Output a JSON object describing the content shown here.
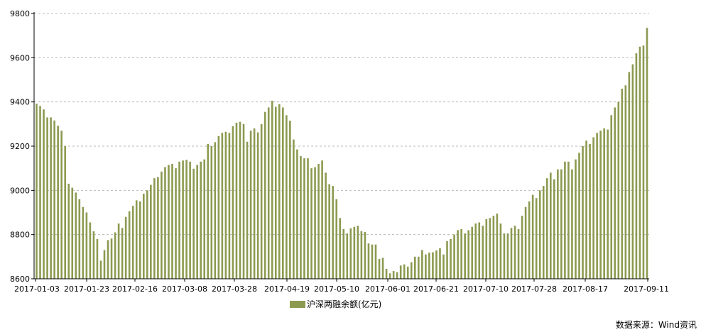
{
  "chart_data": {
    "type": "bar",
    "title": "",
    "xlabel": "",
    "ylabel": "",
    "ylim": [
      8600,
      9800
    ],
    "yticks": [
      8600,
      8800,
      9000,
      9200,
      9400,
      9600,
      9800
    ],
    "xtick_labels": [
      "2017-01-03",
      "2017-01-23",
      "2017-02-16",
      "2017-03-08",
      "2017-03-28",
      "2017-04-19",
      "2017-05-10",
      "2017-06-01",
      "2017-06-21",
      "2017-07-10",
      "2017-07-28",
      "2017-08-17",
      "2017-09-11"
    ],
    "grid": "horizontal dashed",
    "bar_color": "#8c9a50",
    "series": [
      {
        "name": "沪深两融余额(亿元)",
        "values": [
          9392,
          9382,
          9366,
          9330,
          9330,
          9316,
          9292,
          9270,
          9200,
          9030,
          9012,
          8990,
          8960,
          8925,
          8900,
          8855,
          8815,
          8780,
          8682,
          8730,
          8775,
          8782,
          8810,
          8850,
          8830,
          8880,
          8905,
          8930,
          8955,
          8950,
          8985,
          9000,
          9025,
          9055,
          9060,
          9085,
          9105,
          9115,
          9120,
          9100,
          9130,
          9135,
          9138,
          9130,
          9098,
          9115,
          9130,
          9140,
          9210,
          9200,
          9218,
          9245,
          9260,
          9265,
          9260,
          9290,
          9306,
          9310,
          9300,
          9220,
          9270,
          9280,
          9262,
          9300,
          9355,
          9375,
          9405,
          9378,
          9390,
          9375,
          9340,
          9315,
          9230,
          9185,
          9155,
          9145,
          9145,
          9100,
          9105,
          9120,
          9135,
          9080,
          9028,
          9020,
          8960,
          8875,
          8825,
          8805,
          8828,
          8835,
          8840,
          8815,
          8812,
          8760,
          8755,
          8755,
          8690,
          8695,
          8645,
          8625,
          8635,
          8630,
          8660,
          8665,
          8655,
          8675,
          8700,
          8700,
          8730,
          8710,
          8718,
          8720,
          8728,
          8738,
          8710,
          8770,
          8780,
          8800,
          8820,
          8825,
          8805,
          8820,
          8835,
          8850,
          8855,
          8840,
          8870,
          8875,
          8885,
          8895,
          8850,
          8805,
          8805,
          8830,
          8840,
          8825,
          8885,
          8925,
          8950,
          8980,
          8965,
          9000,
          9020,
          9055,
          9080,
          9050,
          9095,
          9095,
          9130,
          9130,
          9095,
          9140,
          9170,
          9200,
          9225,
          9210,
          9240,
          9260,
          9270,
          9280,
          9275,
          9340,
          9375,
          9400,
          9460,
          9475,
          9535,
          9570,
          9620,
          9650,
          9655,
          9735
        ]
      }
    ]
  },
  "legend": {
    "label": "沪深两融余额(亿元)"
  },
  "source": "数据来源：Wind资讯"
}
